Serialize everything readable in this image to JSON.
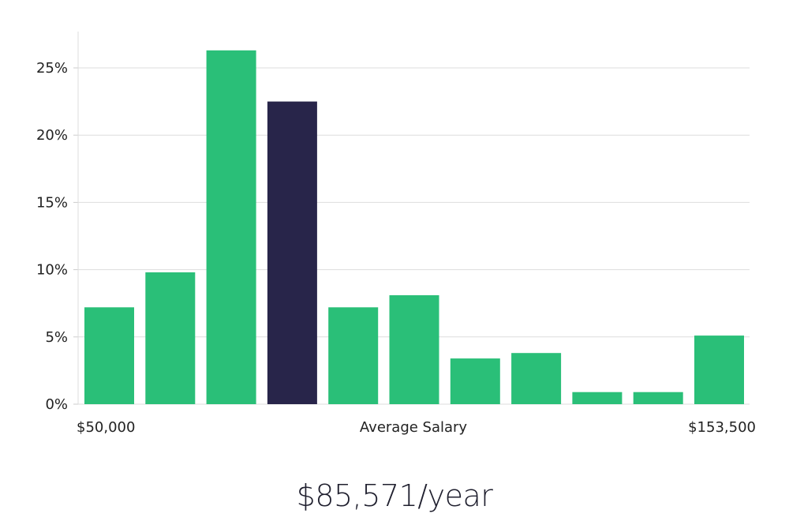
{
  "chart_data": {
    "type": "bar",
    "xlabel": "Average Salary",
    "x_range_labels": {
      "min": "$50,000",
      "max": "$153,500"
    },
    "y_ticks": [
      "0%",
      "5%",
      "10%",
      "15%",
      "20%",
      "25%"
    ],
    "ylim": [
      0,
      27.5
    ],
    "y_unit": "%",
    "grid": true,
    "highlight_index": 3,
    "values": [
      7.2,
      9.8,
      26.3,
      22.5,
      7.2,
      8.1,
      3.4,
      3.8,
      0.9,
      0.9,
      5.1
    ],
    "colors": {
      "bar": "#2abf78",
      "highlight": "#28254a",
      "grid": "#dddddd"
    }
  },
  "summary": {
    "salary_text": "$85,571/year"
  }
}
